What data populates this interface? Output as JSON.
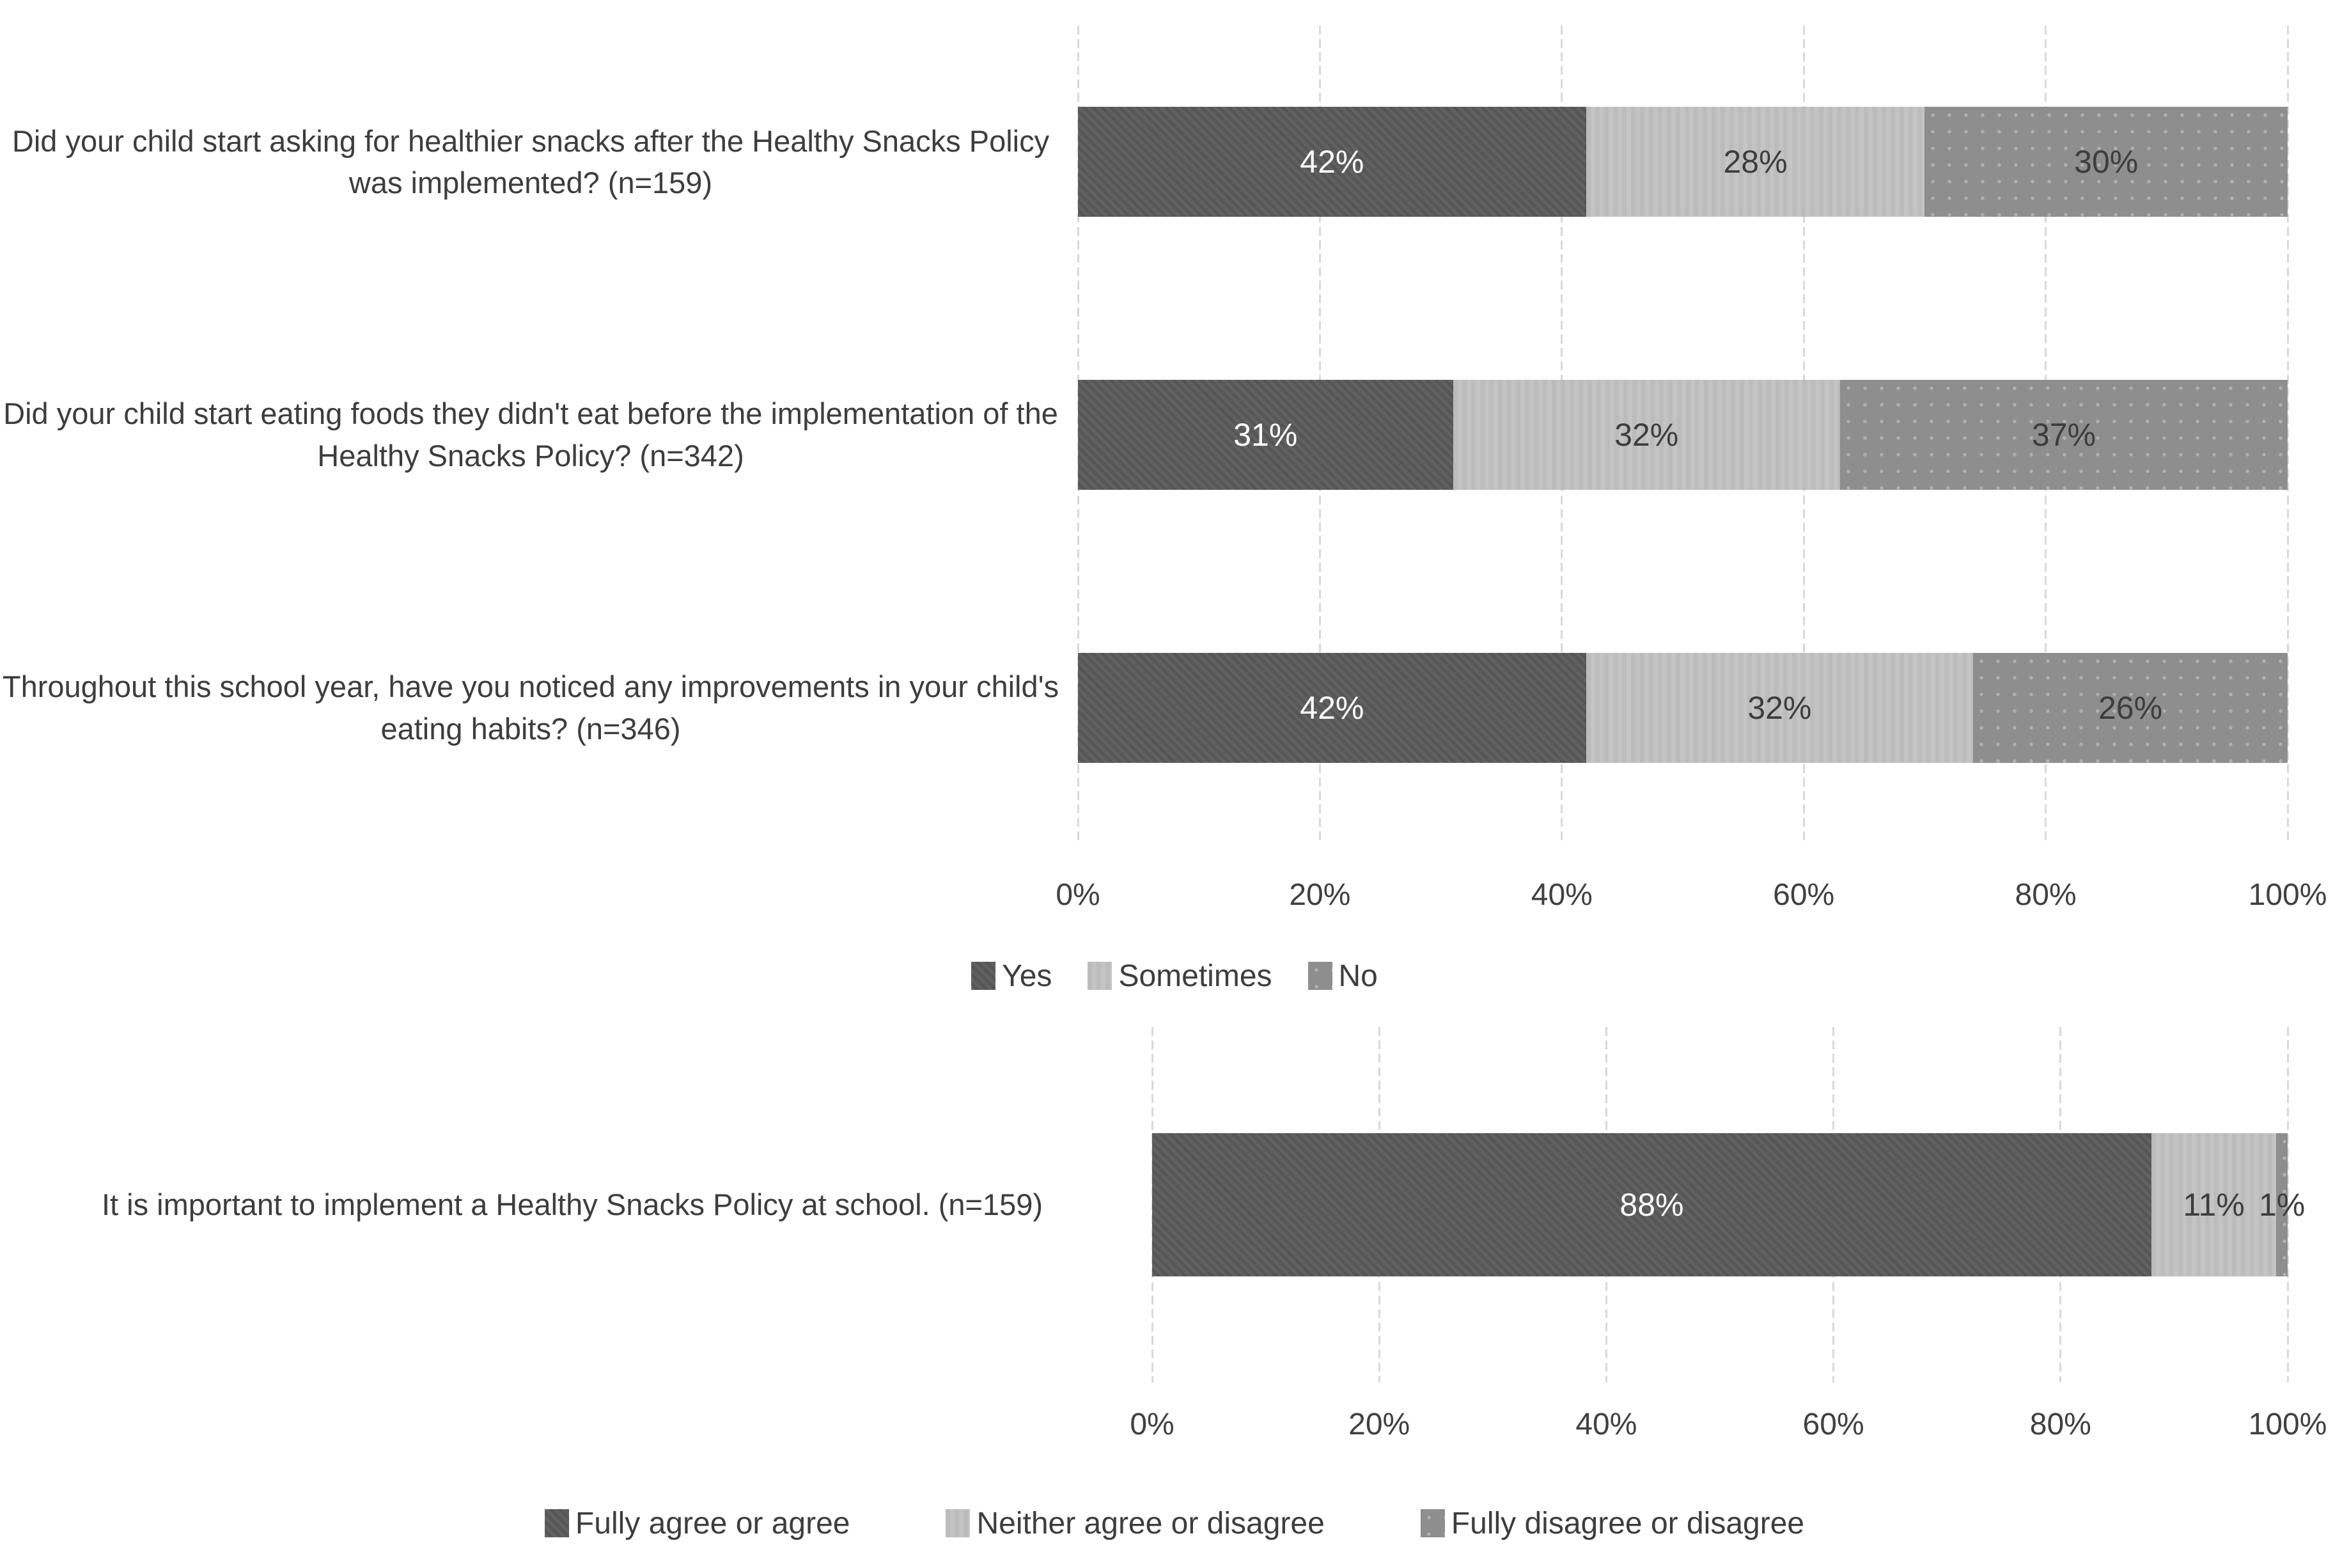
{
  "figure": {
    "background": "#ffffff",
    "text_color": "#3d3d3d"
  },
  "colors": {
    "dark": "#595959",
    "light": "#c4c4c4",
    "medium": "#8e8e8e",
    "gridline": "#d9d9d9",
    "label_on_dark": "#ffffff",
    "label_on_light": "#3d3d3d"
  },
  "chart_data": [
    {
      "type": "bar",
      "orientation": "horizontal",
      "stacked": true,
      "unit": "%",
      "xlim": [
        0,
        100
      ],
      "grid": true,
      "x_ticks": [
        "0%",
        "20%",
        "40%",
        "60%",
        "80%",
        "100%"
      ],
      "legend_position": "bottom",
      "categories": [
        "Did your child start asking for healthier snacks after the Healthy Snacks Policy was implemented? (n=159)",
        "Did your child start eating foods they didn't eat before the implementation of the Healthy Snacks Policy? (n=342)",
        "Throughout this school year, have you noticed any improvements in your child's eating habits? (n=346)"
      ],
      "series": [
        {
          "name": "Yes",
          "color": "#595959",
          "label_color": "#ffffff",
          "values": [
            42,
            31,
            42
          ]
        },
        {
          "name": "Sometimes",
          "color": "#c4c4c4",
          "label_color": "#3d3d3d",
          "values": [
            28,
            32,
            32
          ]
        },
        {
          "name": "No",
          "color": "#8e8e8e",
          "label_color": "#3d3d3d",
          "values": [
            30,
            37,
            26
          ]
        }
      ]
    },
    {
      "type": "bar",
      "orientation": "horizontal",
      "stacked": true,
      "unit": "%",
      "xlim": [
        0,
        100
      ],
      "grid": true,
      "x_ticks": [
        "0%",
        "20%",
        "40%",
        "60%",
        "80%",
        "100%"
      ],
      "legend_position": "bottom",
      "categories": [
        "It is important to implement a Healthy Snacks Policy at school. (n=159)"
      ],
      "series": [
        {
          "name": "Fully agree or agree",
          "color": "#595959",
          "label_color": "#ffffff",
          "values": [
            88
          ]
        },
        {
          "name": "Neither agree or disagree",
          "color": "#c4c4c4",
          "label_color": "#3d3d3d",
          "values": [
            11
          ]
        },
        {
          "name": "Fully disagree or disagree",
          "color": "#8e8e8e",
          "label_color": "#3d3d3d",
          "values": [
            1
          ]
        }
      ]
    }
  ]
}
